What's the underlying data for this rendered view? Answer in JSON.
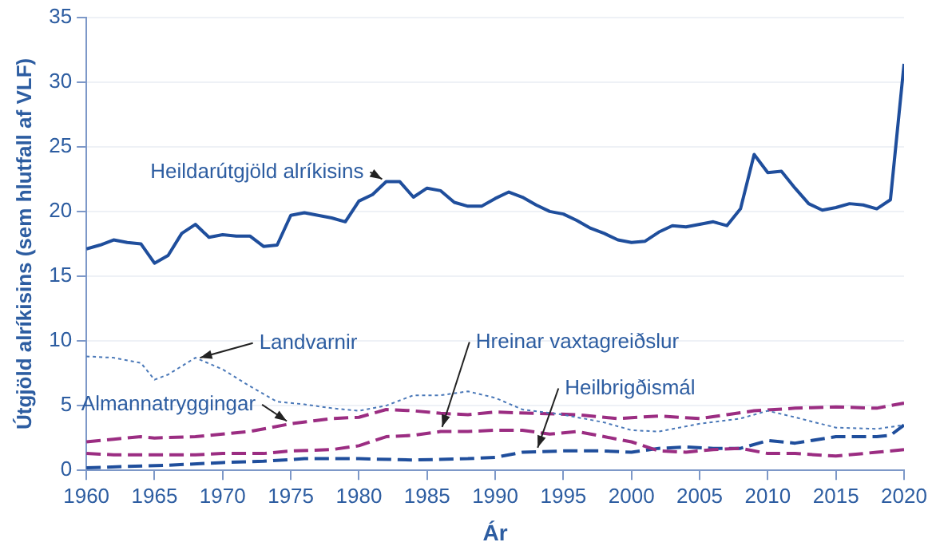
{
  "chart_data": {
    "type": "line",
    "xlabel": "Ár",
    "ylabel": "Útgjöld alríkisins (sem hlutfall af VLF)",
    "xlim": [
      1960,
      2020
    ],
    "xticks": [
      1960,
      1965,
      1970,
      1975,
      1980,
      1985,
      1990,
      1995,
      2000,
      2005,
      2010,
      2015,
      2020
    ],
    "ylim": [
      0,
      35
    ],
    "yticks": [
      0,
      5,
      10,
      15,
      20,
      25,
      30,
      35
    ],
    "grid": "y",
    "legend": false,
    "marker": "none",
    "series": [
      {
        "color": "#1f4e9c",
        "line_style": "solid",
        "x": [
          1960,
          1961,
          1962,
          1963,
          1964,
          1965,
          1966,
          1967,
          1968,
          1969,
          1970,
          1971,
          1972,
          1973,
          1974,
          1975,
          1976,
          1977,
          1978,
          1979,
          1980,
          1981,
          1982,
          1983,
          1984,
          1985,
          1986,
          1987,
          1988,
          1989,
          1990,
          1991,
          1992,
          1993,
          1994,
          1995,
          1996,
          1997,
          1998,
          1999,
          2000,
          2001,
          2002,
          2003,
          2004,
          2005,
          2006,
          2007,
          2008,
          2009,
          2010,
          2011,
          2012,
          2013,
          2014,
          2015,
          2016,
          2017,
          2018,
          2019,
          2020
        ],
        "values": [
          17.1,
          17.4,
          17.8,
          17.6,
          17.5,
          16.0,
          16.6,
          18.3,
          19.0,
          18.0,
          18.2,
          18.1,
          18.1,
          17.3,
          17.4,
          19.7,
          19.9,
          19.7,
          19.5,
          19.2,
          20.8,
          21.3,
          22.3,
          22.3,
          21.1,
          21.8,
          21.6,
          20.7,
          20.4,
          20.4,
          21.0,
          21.5,
          21.1,
          20.5,
          20.0,
          19.8,
          19.3,
          18.7,
          18.3,
          17.8,
          17.6,
          17.7,
          18.4,
          18.9,
          18.8,
          19.0,
          19.2,
          18.9,
          20.2,
          24.4,
          23.0,
          23.1,
          21.8,
          20.6,
          20.1,
          20.3,
          20.6,
          20.5,
          20.2,
          20.9,
          31.4
        ]
      },
      {
        "color": "#4a78b8",
        "line_style": "dotted",
        "x": [
          1960,
          1962,
          1964,
          1965,
          1966,
          1968,
          1970,
          1972,
          1974,
          1976,
          1978,
          1980,
          1982,
          1984,
          1986,
          1988,
          1990,
          1992,
          1995,
          1998,
          2000,
          2002,
          2005,
          2008,
          2010,
          2012,
          2015,
          2018,
          2020
        ],
        "values": [
          8.8,
          8.7,
          8.3,
          7.0,
          7.4,
          8.7,
          7.8,
          6.5,
          5.3,
          5.1,
          4.8,
          4.6,
          5.0,
          5.8,
          5.8,
          6.1,
          5.6,
          4.7,
          4.3,
          3.7,
          3.1,
          3.0,
          3.6,
          4.0,
          4.6,
          4.1,
          3.3,
          3.2,
          3.5
        ]
      },
      {
        "color": "#9b2d82",
        "line_style": "dashed",
        "x": [
          1960,
          1962,
          1964,
          1965,
          1968,
          1970,
          1972,
          1975,
          1978,
          1980,
          1982,
          1984,
          1986,
          1988,
          1990,
          1993,
          1996,
          1999,
          2002,
          2005,
          2007,
          2009,
          2012,
          2015,
          2018,
          2020
        ],
        "values": [
          2.2,
          2.4,
          2.6,
          2.5,
          2.6,
          2.8,
          3.0,
          3.6,
          4.0,
          4.1,
          4.7,
          4.6,
          4.4,
          4.3,
          4.5,
          4.4,
          4.3,
          4.0,
          4.2,
          4.0,
          4.3,
          4.6,
          4.8,
          4.9,
          4.8,
          5.2
        ]
      },
      {
        "color": "#9b2d82",
        "line_style": "dashed",
        "x": [
          1960,
          1962,
          1965,
          1968,
          1970,
          1973,
          1975,
          1978,
          1980,
          1982,
          1984,
          1986,
          1988,
          1990,
          1992,
          1994,
          1996,
          1998,
          2000,
          2002,
          2004,
          2006,
          2008,
          2010,
          2012,
          2015,
          2018,
          2020
        ],
        "values": [
          1.3,
          1.2,
          1.2,
          1.2,
          1.3,
          1.3,
          1.5,
          1.6,
          1.9,
          2.6,
          2.7,
          3.0,
          3.0,
          3.1,
          3.1,
          2.8,
          3.0,
          2.6,
          2.2,
          1.5,
          1.4,
          1.6,
          1.7,
          1.3,
          1.3,
          1.1,
          1.4,
          1.6
        ]
      },
      {
        "color": "#1f4e9c",
        "line_style": "dashed",
        "x": [
          1960,
          1963,
          1966,
          1970,
          1973,
          1976,
          1980,
          1984,
          1988,
          1990,
          1992,
          1995,
          1998,
          2000,
          2002,
          2004,
          2006,
          2008,
          2010,
          2012,
          2015,
          2018,
          2019,
          2020
        ],
        "values": [
          0.2,
          0.3,
          0.4,
          0.6,
          0.7,
          0.9,
          0.9,
          0.8,
          0.9,
          1.0,
          1.4,
          1.5,
          1.5,
          1.4,
          1.7,
          1.8,
          1.7,
          1.7,
          2.3,
          2.1,
          2.6,
          2.6,
          2.7,
          3.5
        ]
      }
    ],
    "annotations": [
      {
        "text": "Heildarútgjöld alríkisins",
        "x": 1982,
        "y": 22.3
      },
      {
        "text": "Landvarnir",
        "x": 1968,
        "y": 8.6
      },
      {
        "text": "Almannatryggingar",
        "x": 1975,
        "y": 3.6
      },
      {
        "text": "Hreinar vaxtagreiðslur",
        "x": 1986,
        "y": 3.0
      },
      {
        "text": "Heilbrigðismál",
        "x": 1993,
        "y": 1.4
      }
    ]
  }
}
